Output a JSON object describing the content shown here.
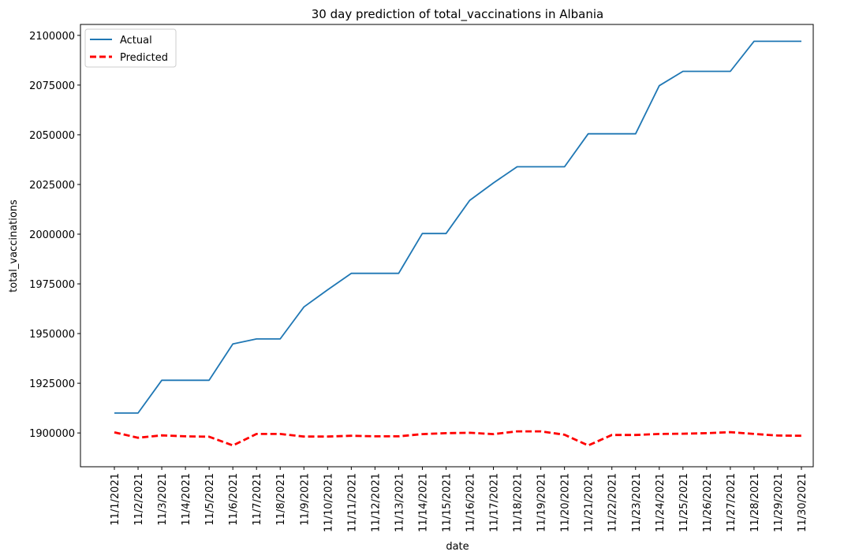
{
  "chart_data": {
    "type": "line",
    "title": "30 day prediction of total_vaccinations in Albania",
    "xlabel": "date",
    "ylabel": "total_vaccinations",
    "categories": [
      "11/1/2021",
      "11/2/2021",
      "11/3/2021",
      "11/4/2021",
      "11/5/2021",
      "11/6/2021",
      "11/7/2021",
      "11/8/2021",
      "11/9/2021",
      "11/10/2021",
      "11/11/2021",
      "11/12/2021",
      "11/13/2021",
      "11/14/2021",
      "11/15/2021",
      "11/16/2021",
      "11/17/2021",
      "11/18/2021",
      "11/19/2021",
      "11/20/2021",
      "11/21/2021",
      "11/22/2021",
      "11/23/2021",
      "11/24/2021",
      "11/25/2021",
      "11/26/2021",
      "11/27/2021",
      "11/28/2021",
      "11/29/2021",
      "11/30/2021"
    ],
    "yticks": [
      1900000,
      1925000,
      1950000,
      1975000,
      2000000,
      2025000,
      2050000,
      2075000,
      2100000
    ],
    "ylim": [
      1883000,
      2105500
    ],
    "grid": false,
    "legend_position": "top-left",
    "series": [
      {
        "name": "Actual",
        "color": "#1f77b4",
        "style": "solid",
        "values": [
          1910000,
          1910000,
          1926500,
          1926500,
          1926500,
          1944800,
          1947300,
          1947300,
          1963400,
          1972000,
          1980300,
          1980300,
          1980300,
          2000300,
          2000300,
          2017000,
          2025800,
          2033900,
          2033900,
          2033900,
          2050500,
          2050500,
          2050500,
          2074700,
          2081900,
          2081900,
          2081900,
          2097000,
          2097000,
          2097000
        ]
      },
      {
        "name": "Predicted",
        "color": "#ff0000",
        "style": "dashed",
        "values": [
          1900300,
          1897600,
          1898800,
          1898300,
          1898100,
          1893700,
          1899500,
          1899500,
          1898200,
          1898200,
          1898600,
          1898300,
          1898300,
          1899400,
          1899900,
          1900100,
          1899400,
          1900800,
          1900800,
          1899100,
          1893700,
          1899000,
          1899000,
          1899500,
          1899600,
          1899900,
          1900400,
          1899500,
          1898700,
          1898600
        ]
      }
    ]
  }
}
